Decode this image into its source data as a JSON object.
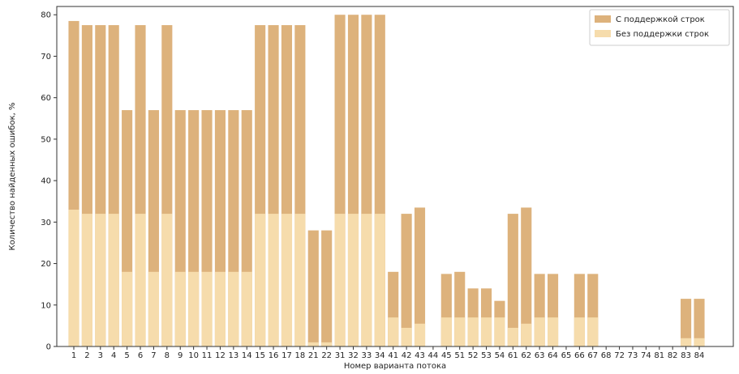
{
  "chart_data": {
    "type": "bar",
    "stacked": false,
    "overlay": true,
    "xlabel": "Номер варианта потока",
    "ylabel": "Количество найденных ошибок, %",
    "ylim": [
      0,
      82
    ],
    "yticks": [
      0,
      10,
      20,
      30,
      40,
      50,
      60,
      70,
      80
    ],
    "grid": false,
    "legend_position": "top-right",
    "categories": [
      "1",
      "2",
      "3",
      "4",
      "5",
      "6",
      "7",
      "8",
      "9",
      "10",
      "11",
      "12",
      "13",
      "14",
      "15",
      "16",
      "17",
      "18",
      "21",
      "22",
      "31",
      "32",
      "33",
      "34",
      "41",
      "42",
      "43",
      "44",
      "45",
      "51",
      "52",
      "53",
      "54",
      "61",
      "62",
      "63",
      "64",
      "65",
      "66",
      "67",
      "68",
      "72",
      "73",
      "74",
      "81",
      "82",
      "83",
      "84"
    ],
    "series": [
      {
        "name": "С поддержкой строк",
        "color": "#ddb27c",
        "values": [
          78.5,
          77.5,
          77.5,
          77.5,
          57,
          77.5,
          57,
          77.5,
          57,
          57,
          57,
          57,
          57,
          57,
          77.5,
          77.5,
          77.5,
          77.5,
          28,
          28,
          80,
          80,
          80,
          80,
          18,
          32,
          33.5,
          0,
          17.5,
          18,
          14,
          14,
          11,
          32,
          33.5,
          17.5,
          17.5,
          0,
          17.5,
          17.5,
          0,
          0,
          0,
          0,
          0,
          0,
          11.5,
          11.5
        ]
      },
      {
        "name": "Без поддержки строк",
        "color": "#f6dcac",
        "values": [
          33,
          32,
          32,
          32,
          18,
          32,
          18,
          32,
          18,
          18,
          18,
          18,
          18,
          18,
          32,
          32,
          32,
          32,
          1,
          1,
          32,
          32,
          32,
          32,
          7,
          4.5,
          5.5,
          0,
          7,
          7,
          7,
          7,
          7,
          4.5,
          5.5,
          7,
          7,
          0,
          7,
          7,
          0,
          0,
          0,
          0,
          0,
          0,
          2,
          2
        ]
      }
    ]
  }
}
